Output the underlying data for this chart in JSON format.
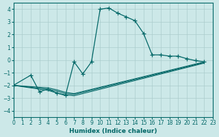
{
  "xlabel": "Humidex (Indice chaleur)",
  "ylabel": "",
  "background_color": "#cce8e8",
  "grid_color": "#aacccc",
  "line_color": "#006666",
  "xlim": [
    0,
    23
  ],
  "ylim": [
    -4.5,
    4.5
  ],
  "xticks": [
    0,
    1,
    2,
    3,
    4,
    5,
    6,
    7,
    8,
    9,
    10,
    11,
    12,
    13,
    14,
    15,
    16,
    17,
    18,
    19,
    20,
    21,
    22,
    23
  ],
  "yticks": [
    -4,
    -3,
    -2,
    -1,
    0,
    1,
    2,
    3,
    4
  ],
  "main_series": {
    "x": [
      0,
      2,
      3,
      4,
      5,
      6,
      7,
      8,
      9,
      10,
      11,
      12,
      13,
      14,
      15,
      16,
      17,
      18,
      19,
      20,
      21,
      22
    ],
    "y": [
      -2,
      -1.2,
      -2.5,
      -2.3,
      -2.6,
      -2.8,
      -0.15,
      -1.1,
      -0.15,
      4.0,
      4.1,
      3.7,
      3.4,
      3.1,
      2.1,
      0.4,
      0.4,
      0.3,
      0.3,
      0.1,
      -0.05,
      -0.15
    ]
  },
  "flat_series": [
    {
      "x": [
        0,
        4,
        5,
        6,
        7,
        22
      ],
      "y": [
        -2.0,
        -2.2,
        -2.35,
        -2.55,
        -2.65,
        -0.15
      ]
    },
    {
      "x": [
        0,
        4,
        5,
        6,
        7,
        22
      ],
      "y": [
        -2.0,
        -2.3,
        -2.45,
        -2.65,
        -2.72,
        -0.2
      ]
    },
    {
      "x": [
        0,
        4,
        5,
        6,
        7,
        22
      ],
      "y": [
        -2.0,
        -2.4,
        -2.6,
        -2.75,
        -2.82,
        -0.25
      ]
    }
  ]
}
